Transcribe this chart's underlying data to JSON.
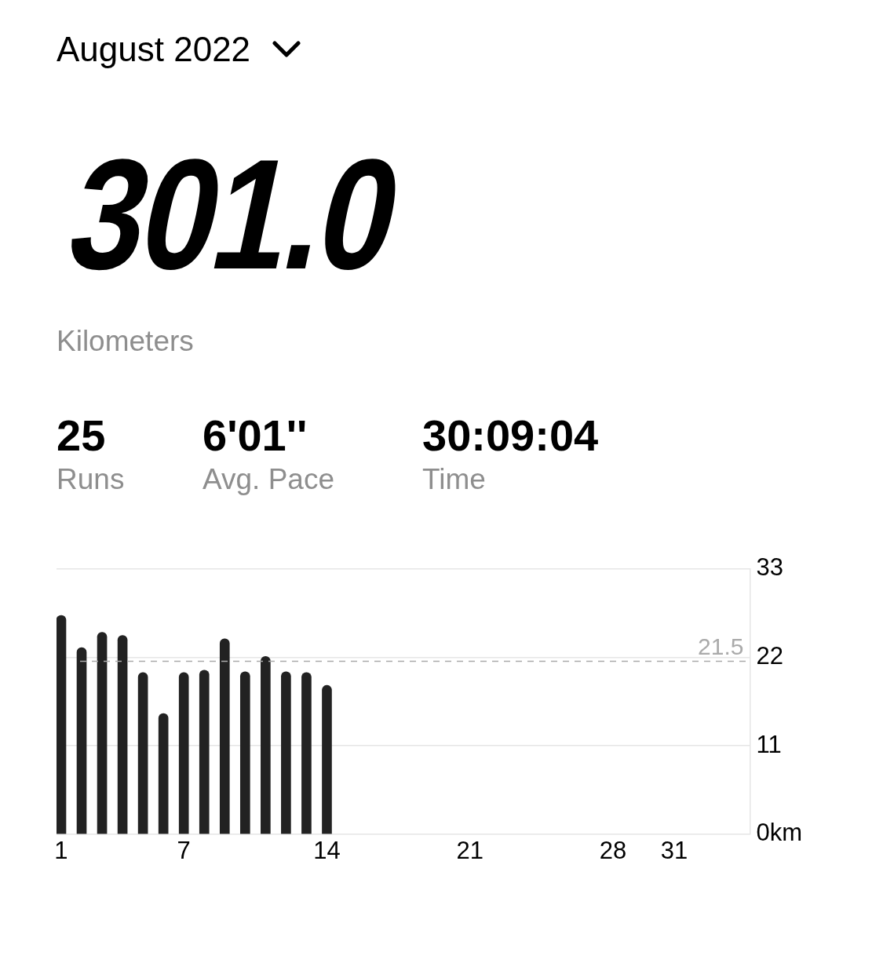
{
  "chart_data": {
    "type": "bar",
    "title": "August 2022",
    "annotations": [
      "301.0",
      "Kilometers",
      "25",
      "Runs",
      "6'01''",
      "Avg. Pace",
      "30:09:04",
      "Time"
    ],
    "x": [
      1,
      2,
      3,
      4,
      5,
      6,
      7,
      8,
      9,
      10,
      11,
      12,
      13,
      14
    ],
    "values": [
      27.2,
      23.2,
      25.1,
      24.7,
      20.1,
      15.0,
      20.1,
      20.4,
      24.3,
      20.2,
      22.1,
      20.2,
      20.1,
      18.5
    ],
    "color": "#222222",
    "xlim": [
      0.77,
      34.7
    ],
    "xticks": [
      1,
      7,
      14,
      21,
      28,
      31
    ],
    "ylim": [
      0,
      33
    ],
    "yticks": [
      {
        "value": 0,
        "label": "0km"
      },
      11,
      22,
      33
    ],
    "grid": "y",
    "ref_lines": [
      {
        "axis": "y",
        "value": 21.5,
        "label": "21.5",
        "color": "#aaaaaa",
        "line_style": "dashed"
      }
    ]
  }
}
